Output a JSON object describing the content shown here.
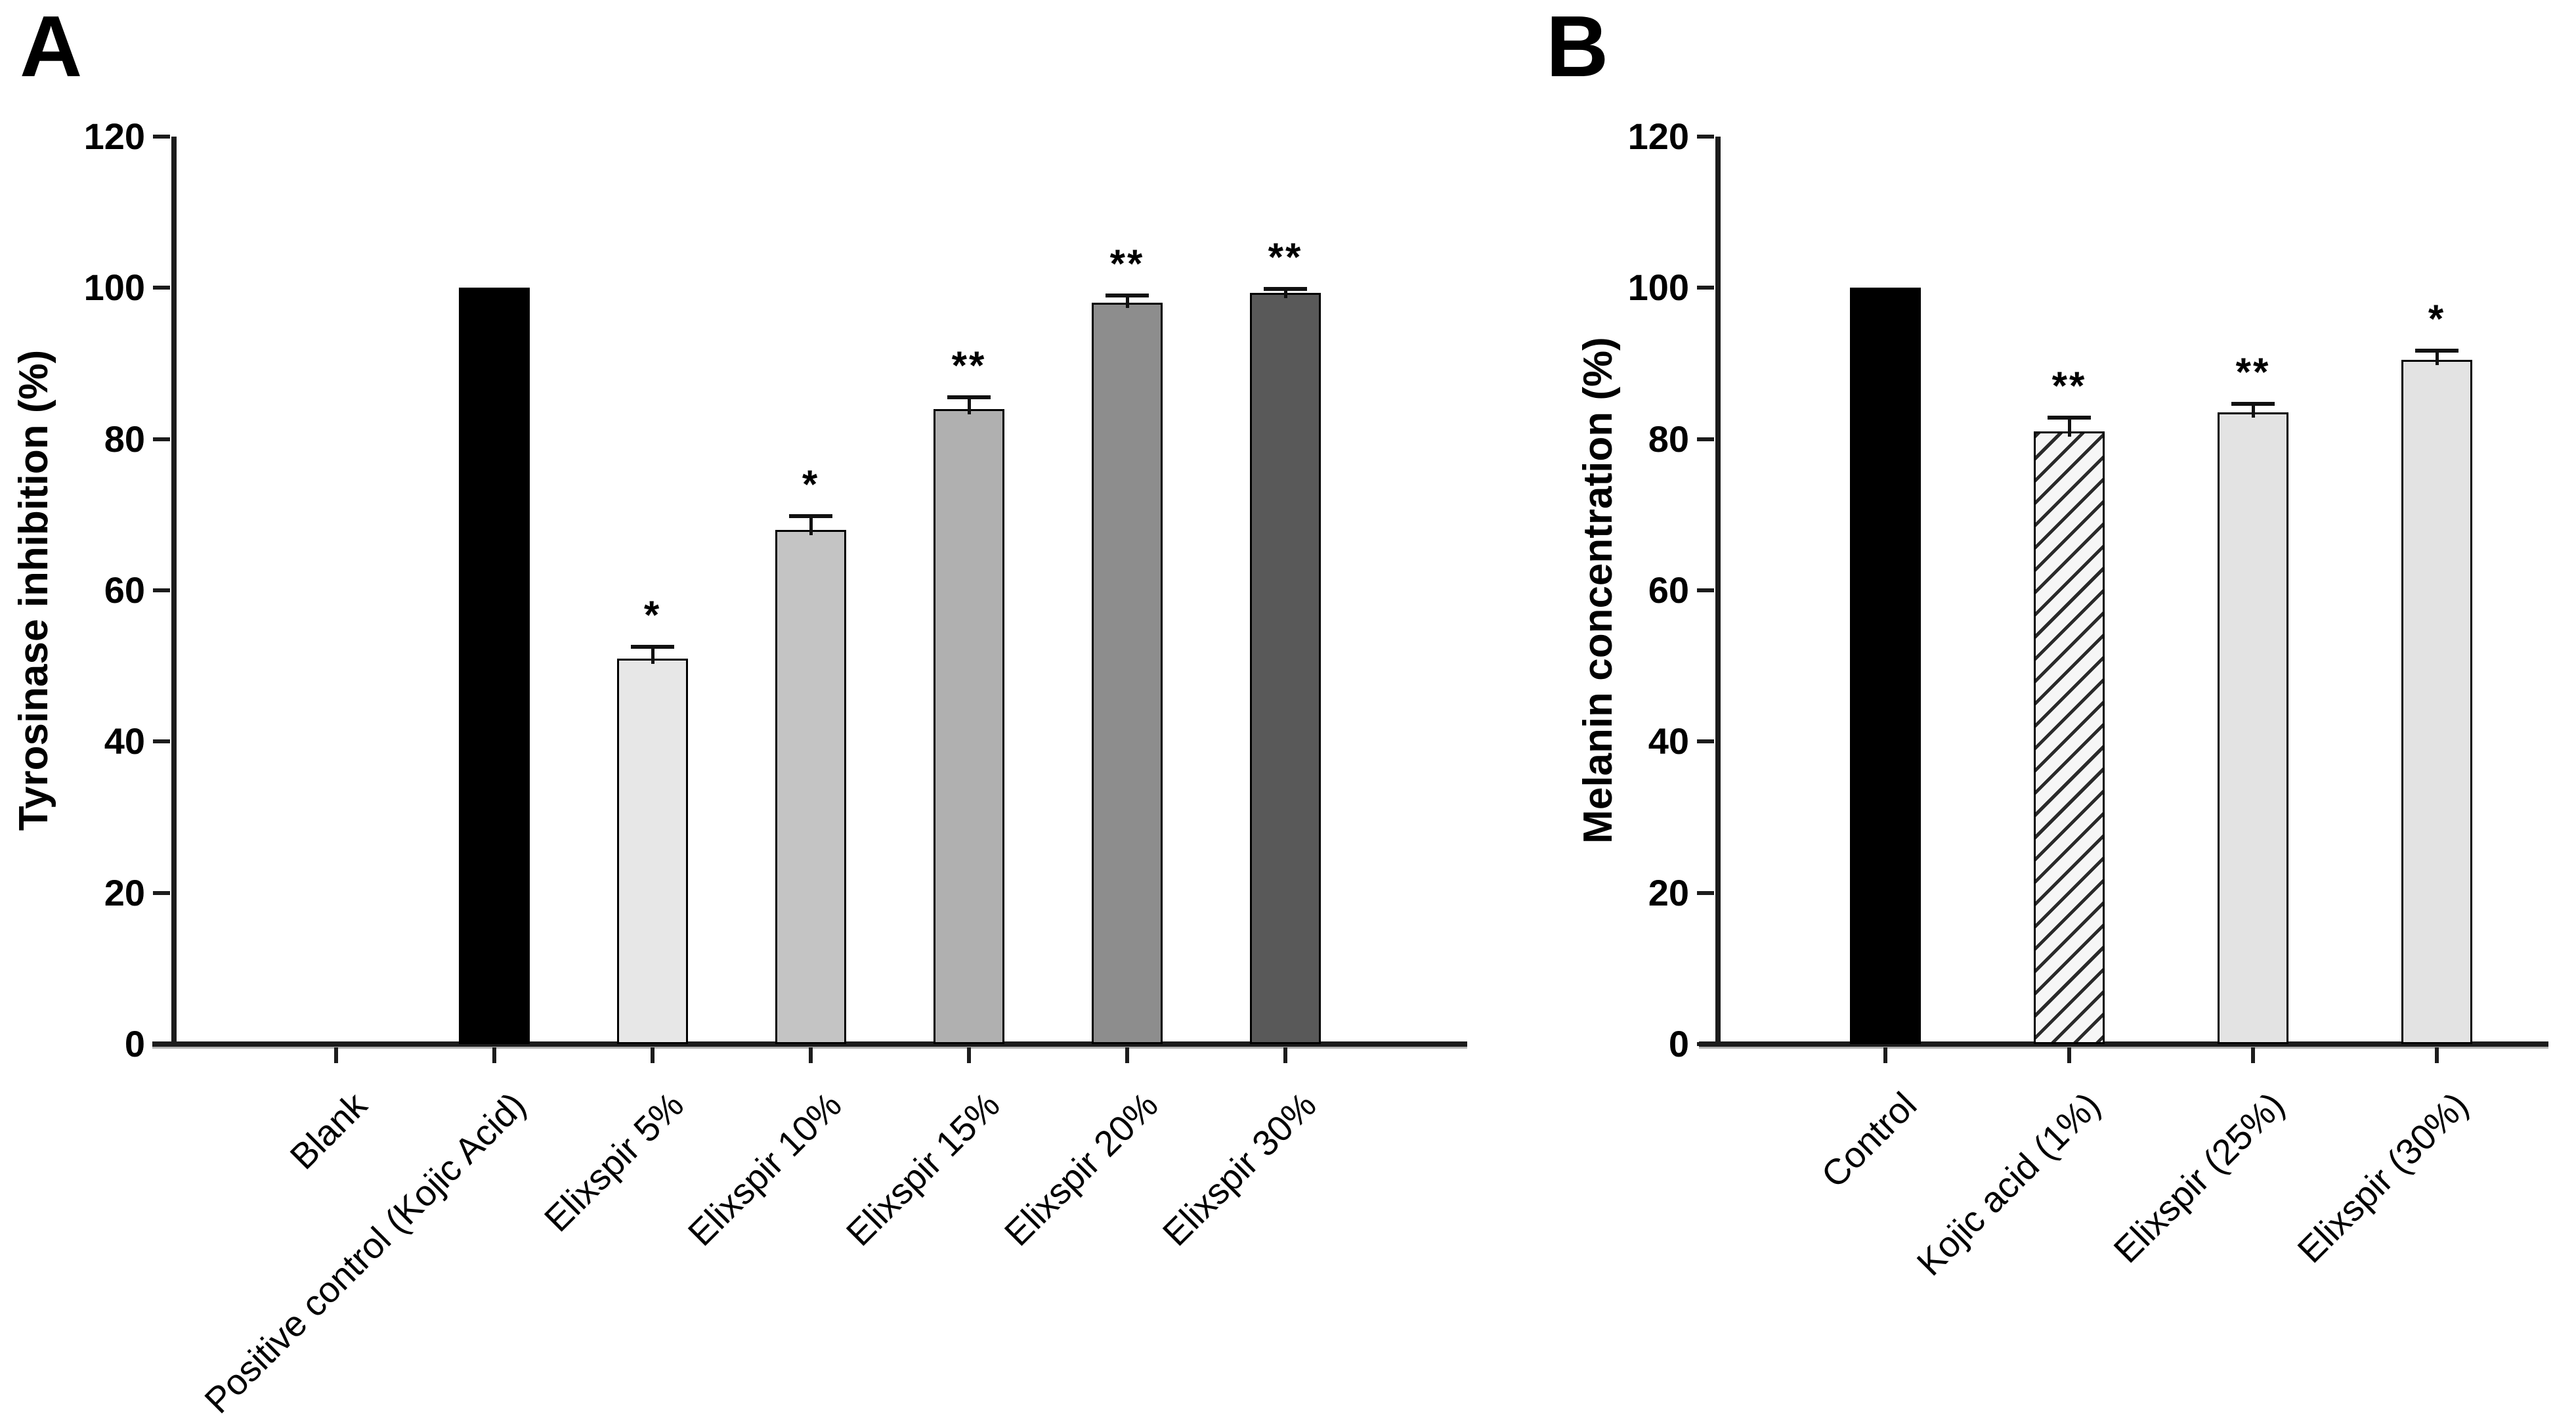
{
  "figure": {
    "background_color": "#ffffff",
    "axis_color": "#1c1c1c",
    "error_bar_color": "#111111",
    "text_color": "#000000"
  },
  "chart_data": [
    {
      "type": "bar",
      "panel_label": "A",
      "title": "",
      "xlabel": "",
      "ylabel": "Tyrosinase inhibition (%)",
      "ylim": [
        0,
        120
      ],
      "yticks": [
        0,
        20,
        40,
        60,
        80,
        100,
        120
      ],
      "grid": false,
      "legend": null,
      "categories": [
        "Blank",
        "Positive control (Kojic Acid)",
        "Elixspir 5%",
        "Elixspir 10%",
        "Elixspir 15%",
        "Elixspir 20%",
        "Elixspir 30%"
      ],
      "values": [
        0,
        100,
        51,
        68,
        84,
        98,
        99.3
      ],
      "errors": [
        0,
        0,
        1.5,
        1.8,
        1.5,
        1,
        0.6
      ],
      "significance": [
        "",
        "",
        "*",
        "*",
        "**",
        "**",
        "**"
      ],
      "bar_fills": [
        "none",
        "#000000",
        "#e7e7e7",
        "#c4c4c4",
        "#b0b0b0",
        "#8d8d8d",
        "#595959"
      ],
      "bar_hatched": [
        false,
        false,
        false,
        false,
        false,
        false,
        false
      ]
    },
    {
      "type": "bar",
      "panel_label": "B",
      "title": "",
      "xlabel": "",
      "ylabel": "Melanin concentration (%)",
      "ylim": [
        0,
        120
      ],
      "yticks": [
        0,
        20,
        40,
        60,
        80,
        100,
        120
      ],
      "grid": false,
      "legend": null,
      "categories": [
        "Control",
        "Kojic acid (1%)",
        "Elixspir (25%)",
        "Elixspir (30%)"
      ],
      "values": [
        100,
        81,
        83.5,
        90.5
      ],
      "errors": [
        0,
        1.8,
        1.2,
        1.2
      ],
      "significance": [
        "",
        "**",
        "**",
        "*"
      ],
      "bar_fills": [
        "#000000",
        "#f6f6f6",
        "#e3e3e3",
        "#e3e3e3"
      ],
      "bar_hatched": [
        false,
        true,
        false,
        false
      ]
    }
  ]
}
